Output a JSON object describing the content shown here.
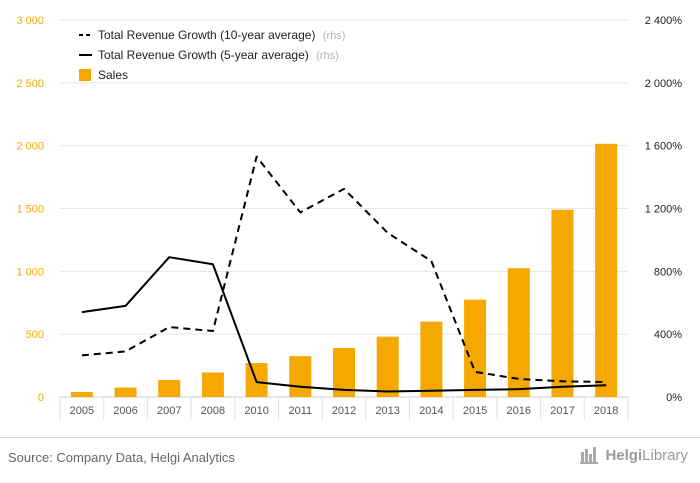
{
  "chart_data": {
    "type": "bar+line",
    "categories": [
      "2005",
      "2006",
      "2007",
      "2008",
      "2010",
      "2011",
      "2012",
      "2013",
      "2014",
      "2015",
      "2016",
      "2017",
      "2018"
    ],
    "left_axis": {
      "ticks": [
        "0",
        "500",
        "1 000",
        "1 500",
        "2 000",
        "2 500",
        "3 000"
      ],
      "min": 0,
      "max": 3000
    },
    "right_axis": {
      "ticks": [
        "0%",
        "400%",
        "800%",
        "1 200%",
        "1 600%",
        "2 000%",
        "2 400%"
      ],
      "min": 0,
      "max": 2400
    },
    "series": [
      {
        "name": "Total Revenue Growth (10-year average)",
        "suffix": "(rhs)",
        "type": "line",
        "style": "dashed",
        "axis": "right",
        "color": "#000000",
        "values": [
          265,
          290,
          445,
          420,
          1530,
          1175,
          1325,
          1045,
          865,
          160,
          115,
          100,
          95
        ]
      },
      {
        "name": "Total Revenue Growth (5-year average)",
        "suffix": "(rhs)",
        "type": "line",
        "style": "solid",
        "axis": "right",
        "color": "#000000",
        "values": [
          540,
          580,
          890,
          845,
          95,
          65,
          45,
          35,
          40,
          45,
          50,
          65,
          75
        ]
      },
      {
        "name": "Sales",
        "type": "bar",
        "axis": "left",
        "color": "#f5a800",
        "values": [
          40,
          75,
          135,
          195,
          270,
          325,
          390,
          480,
          600,
          775,
          1025,
          1490,
          2015
        ]
      }
    ],
    "grid": true,
    "legend": "top-left"
  },
  "footer": {
    "source": "Source: Company Data, Helgi Analytics",
    "brand_strong": "Helgi",
    "brand_light": "Library"
  }
}
